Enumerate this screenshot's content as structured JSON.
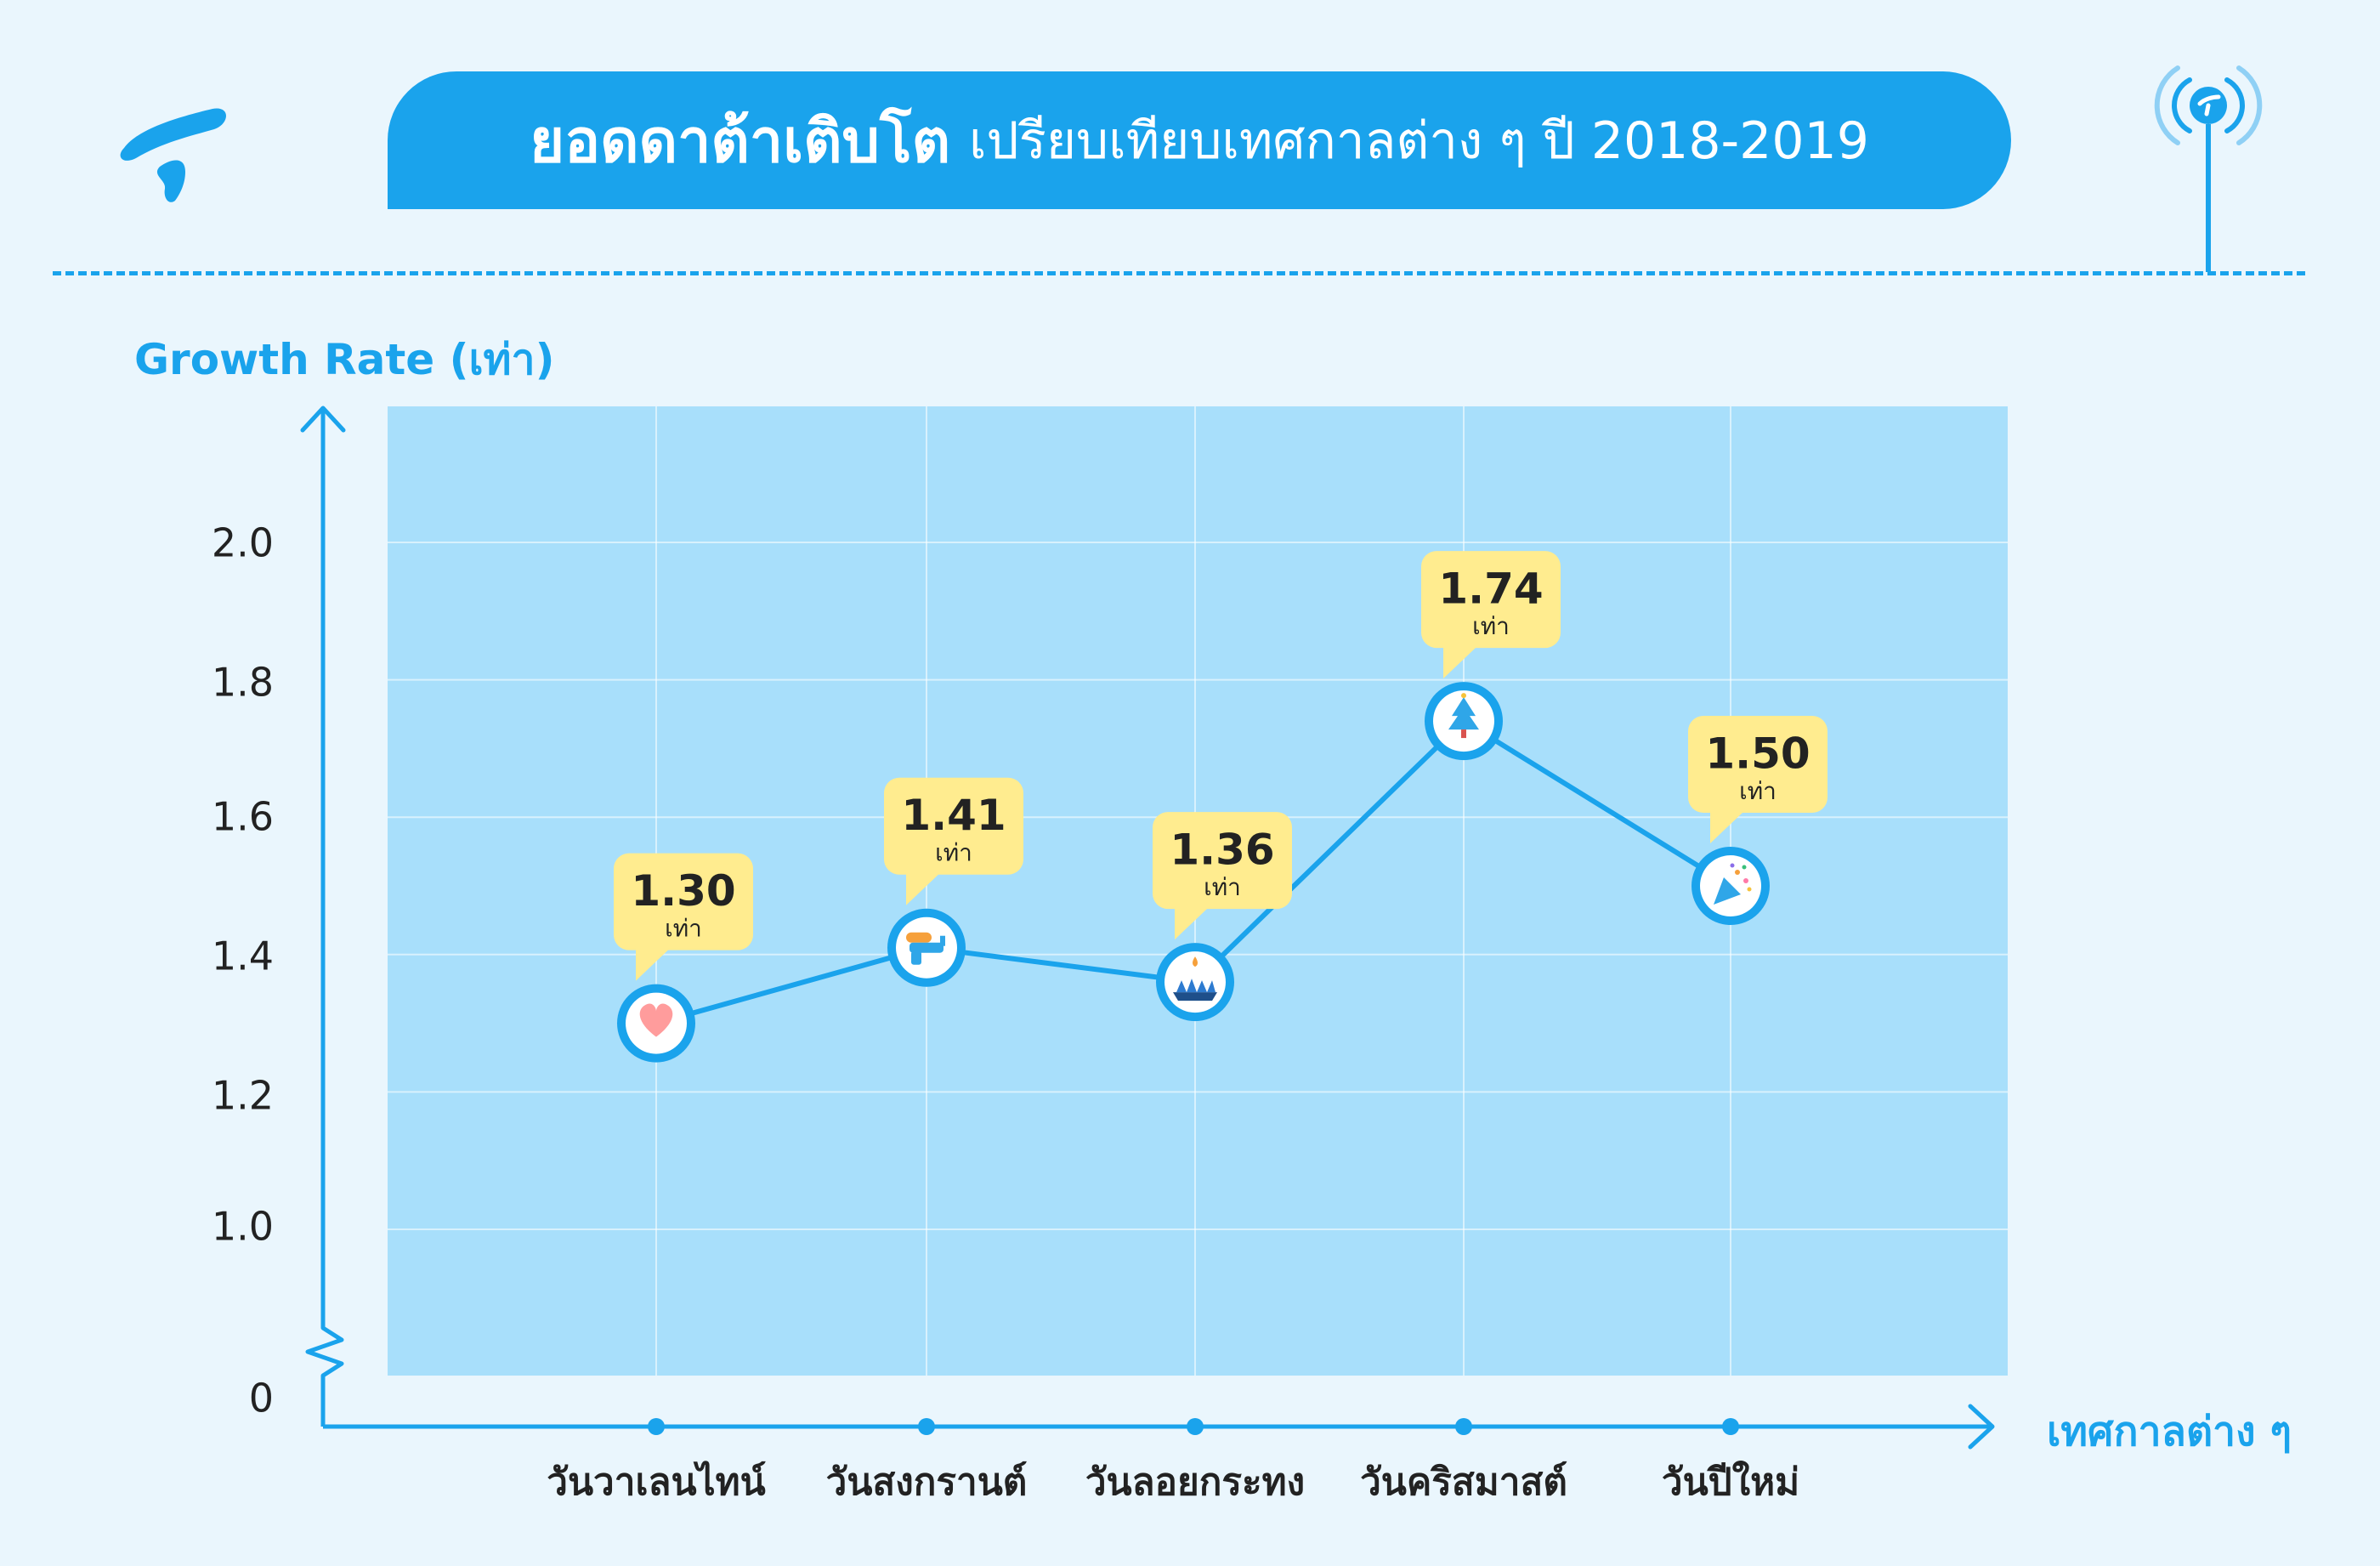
{
  "header": {
    "title_strong": "ยอดดาต้าเติบโต",
    "title_rest": "เปรียบเทียบเทศกาลต่าง ๆ ปี 2018-2019"
  },
  "colors": {
    "accent": "#1aa3ec",
    "plot_bg": "#a8dffb",
    "page_bg": "#eaf6fd",
    "callout": "#ffec8f",
    "text_dark": "#222222"
  },
  "icons": {
    "logo": "telenor-logo-icon",
    "antenna": "antenna-signal-icon",
    "markers": [
      "heart-icon",
      "water-gun-icon",
      "krathong-icon",
      "christmas-tree-icon",
      "party-popper-icon"
    ]
  },
  "chart_data": {
    "type": "line",
    "ylabel": "Growth Rate (เท่า)",
    "xlabel": "เทศกาลต่าง ๆ",
    "categories": [
      "วันวาเลนไทน์",
      "วันสงกรานต์",
      "วันลอยกระทง",
      "วันคริสมาสต์",
      "วันปีใหม่"
    ],
    "values": [
      1.3,
      1.41,
      1.36,
      1.74,
      1.5
    ],
    "value_labels": [
      "1.30",
      "1.41",
      "1.36",
      "1.74",
      "1.50"
    ],
    "value_unit": "เท่า",
    "y_ticks": [
      "0",
      "1.0",
      "1.2",
      "1.4",
      "1.6",
      "1.8",
      "2.0"
    ],
    "ylim": [
      0.8,
      2.2
    ],
    "axis_break": true,
    "grid": true
  }
}
